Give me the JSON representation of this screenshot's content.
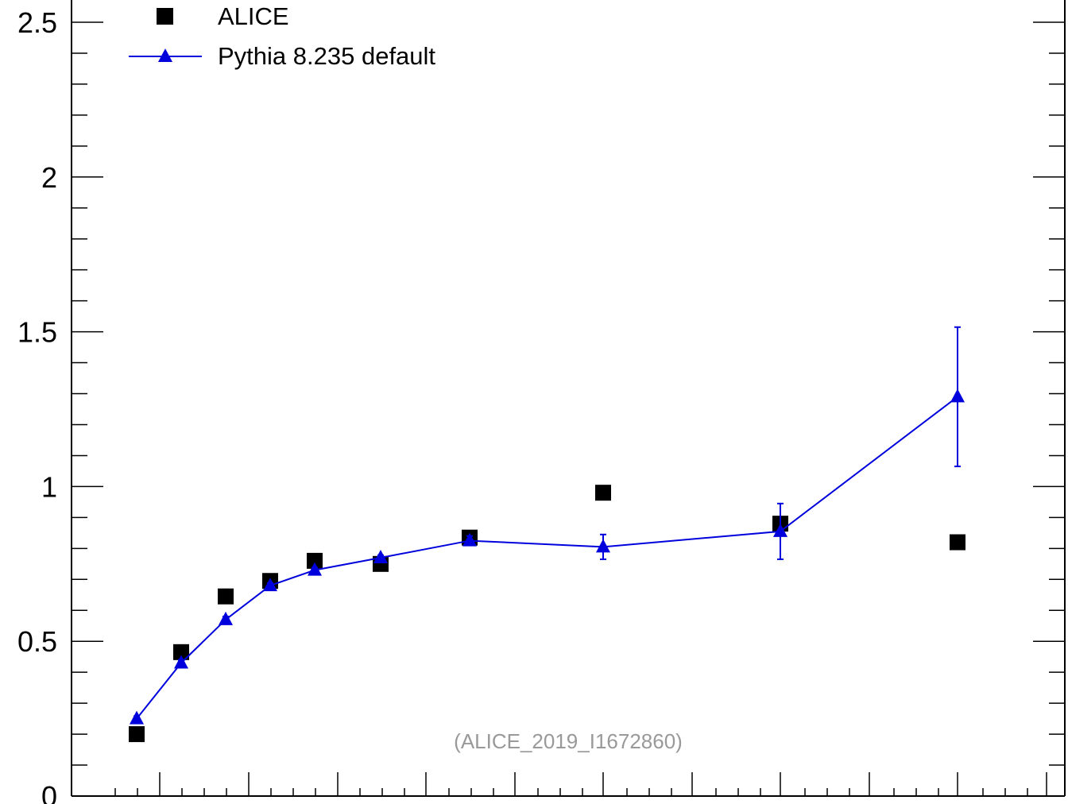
{
  "chart_data": {
    "type": "scatter",
    "title": "",
    "xlabel": "",
    "ylabel": "",
    "ylim": [
      0,
      2.5
    ],
    "y_ticks": [
      "0",
      "0.5",
      "1",
      "1.5",
      "2",
      "2.5"
    ],
    "x": [
      1.5,
      2.5,
      3.5,
      4.5,
      5.5,
      7.0,
      9.0,
      12.0,
      16.0,
      20.0
    ],
    "series": [
      {
        "name": "ALICE",
        "marker": "square",
        "color": "#000000",
        "values": [
          0.2,
          0.465,
          0.645,
          0.695,
          0.76,
          0.75,
          0.835,
          0.98,
          0.88,
          0.82
        ]
      },
      {
        "name": "Pythia 8.235 default",
        "marker": "triangle",
        "color": "#0000dd",
        "values": [
          0.25,
          0.43,
          0.57,
          0.68,
          0.73,
          0.77,
          0.825,
          0.805,
          0.855,
          1.29
        ],
        "errors": [
          0.008,
          0.01,
          0.01,
          0.008,
          0.008,
          0.008,
          0.015,
          0.04,
          0.09,
          0.225
        ]
      }
    ],
    "legend_position": "top-left",
    "annotation": "(ALICE_2019_I1672860)"
  }
}
